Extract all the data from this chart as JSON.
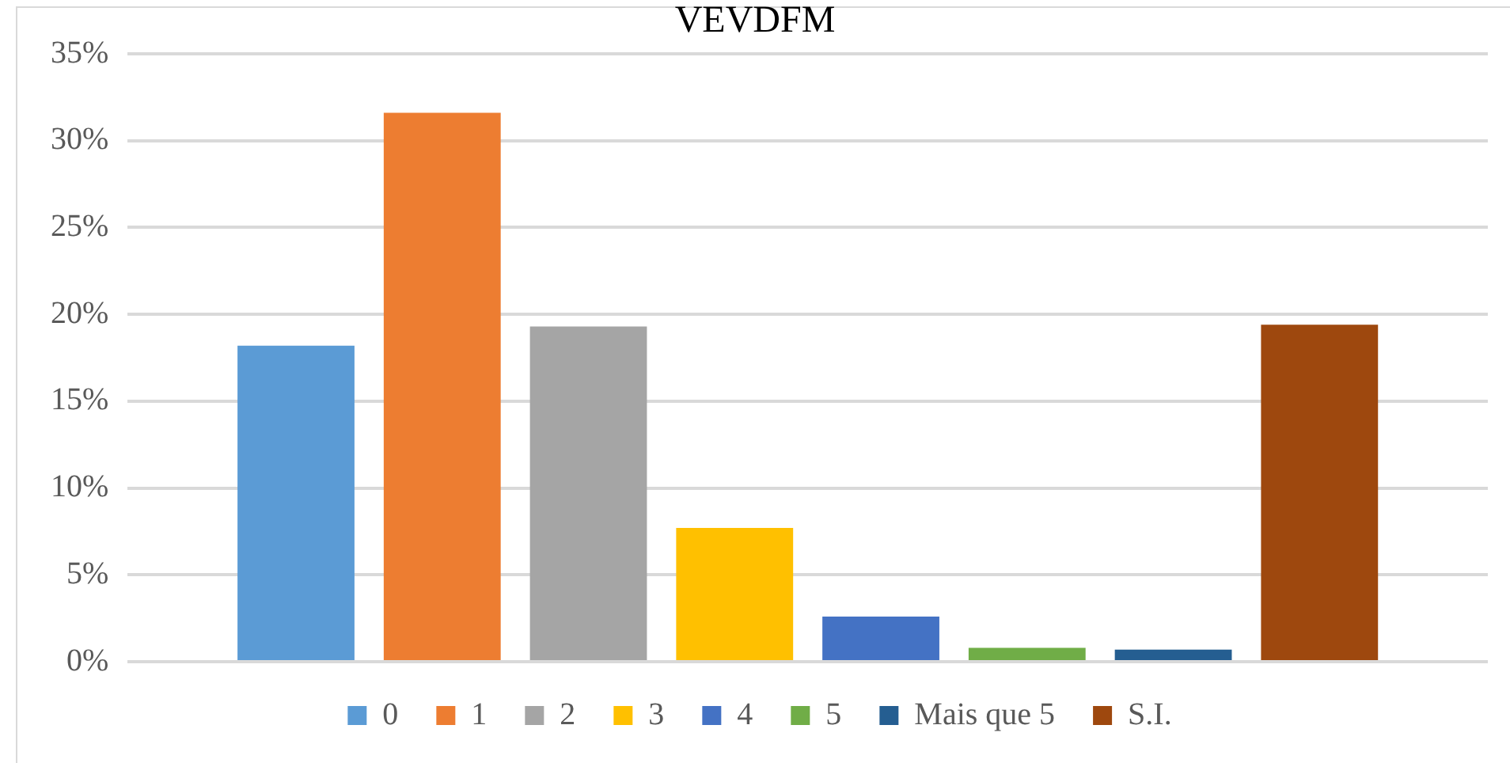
{
  "chart_data": {
    "type": "bar",
    "title": "VEVDFM",
    "categories": [
      null
    ],
    "series": [
      {
        "name": "0",
        "color": "#5b9bd5",
        "values": [
          18.2
        ]
      },
      {
        "name": "1",
        "color": "#ed7d31",
        "values": [
          31.6
        ]
      },
      {
        "name": "2",
        "color": "#a5a5a5",
        "values": [
          19.3
        ]
      },
      {
        "name": "3",
        "color": "#ffc000",
        "values": [
          7.7
        ]
      },
      {
        "name": "4",
        "color": "#4472c4",
        "values": [
          2.6
        ]
      },
      {
        "name": "5",
        "color": "#70ad47",
        "values": [
          0.8
        ]
      },
      {
        "name": "Mais que 5",
        "color": "#255e91",
        "values": [
          0.7
        ]
      },
      {
        "name": "S.I.",
        "color": "#9e480e",
        "values": [
          19.4
        ]
      }
    ],
    "ylim": [
      0,
      35
    ],
    "yticks": [
      {
        "value": 0,
        "label": "0%"
      },
      {
        "value": 5,
        "label": "5%"
      },
      {
        "value": 10,
        "label": "10%"
      },
      {
        "value": 15,
        "label": "15%"
      },
      {
        "value": 20,
        "label": "20%"
      },
      {
        "value": 25,
        "label": "25%"
      },
      {
        "value": 30,
        "label": "30%"
      },
      {
        "value": 35,
        "label": "35%"
      }
    ],
    "grid": "y",
    "legend": "bottom"
  }
}
